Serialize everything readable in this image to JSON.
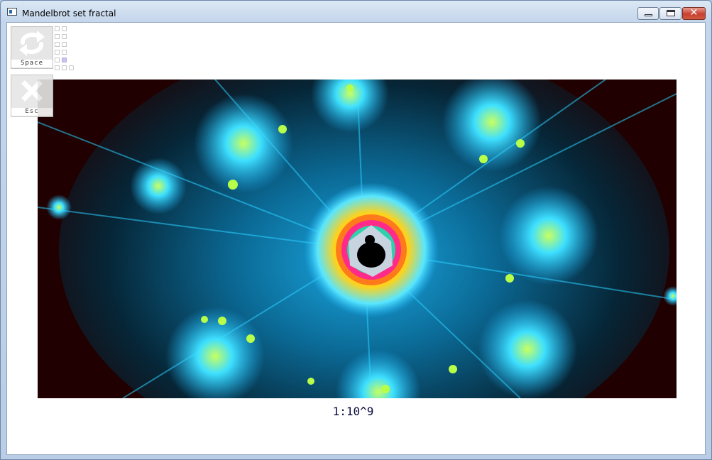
{
  "window": {
    "title": "Mandelbrot set fractal",
    "icon": "app-icon",
    "controls": [
      "minimize-icon",
      "maximize-icon",
      "close-icon"
    ]
  },
  "toolbar": {
    "space_label": "Space",
    "space_icon": "swap-arrows-icon",
    "esc_label": "Esc",
    "esc_icon": "close-icon",
    "mini_grid": {
      "rows": 6,
      "active_cell": "row 5, col 2"
    }
  },
  "fractal": {
    "description_icon": "mandelbrot-render",
    "colors": {
      "background": "#200000",
      "glow": "#1fb8ff",
      "ring": "#ffd21a",
      "inner": "#ff2a8a",
      "core": "#000000"
    }
  },
  "status": {
    "scale": "1:10^9"
  }
}
